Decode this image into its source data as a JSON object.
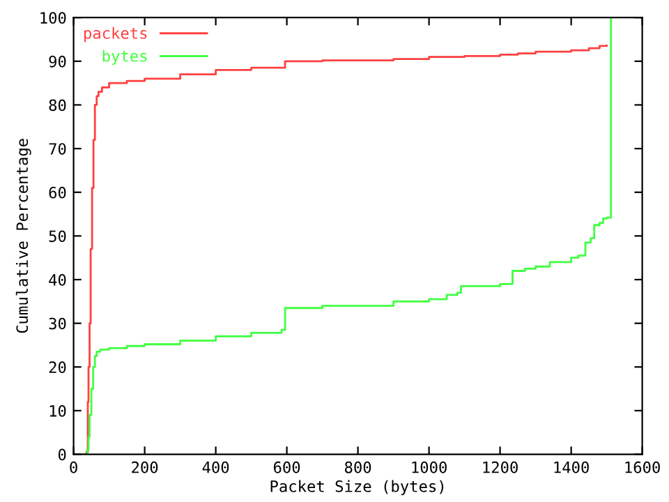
{
  "chart_data": {
    "type": "step",
    "xlabel": "Packet Size (bytes)",
    "ylabel": "Cumulative Percentage",
    "xlim": [
      0,
      1600
    ],
    "ylim": [
      0,
      100
    ],
    "xticks": [
      0,
      200,
      400,
      600,
      800,
      1000,
      1200,
      1400,
      1600
    ],
    "yticks": [
      0,
      10,
      20,
      30,
      40,
      50,
      60,
      70,
      80,
      90,
      100
    ],
    "legend": "top left",
    "grid": false,
    "series": [
      {
        "name": "packets",
        "color": "#ff4040",
        "x": [
          28,
          36,
          40,
          42,
          45,
          48,
          52,
          56,
          60,
          65,
          70,
          80,
          100,
          150,
          200,
          300,
          400,
          500,
          590,
          595,
          700,
          900,
          1000,
          1100,
          1200,
          1250,
          1300,
          1400,
          1450,
          1480,
          1500
        ],
        "values": [
          0,
          0.5,
          12,
          20,
          30,
          47,
          61,
          72,
          80,
          82,
          83,
          84,
          85,
          85.5,
          86,
          87,
          88,
          88.5,
          88.5,
          90,
          90.2,
          90.5,
          91,
          91.2,
          91.5,
          91.8,
          92.2,
          92.5,
          93,
          93.5,
          93.6
        ]
      },
      {
        "name": "bytes",
        "color": "#40ff40",
        "x": [
          28,
          38,
          42,
          45,
          50,
          55,
          60,
          65,
          75,
          100,
          150,
          200,
          300,
          400,
          500,
          585,
          595,
          700,
          900,
          1000,
          1050,
          1080,
          1090,
          1150,
          1200,
          1235,
          1270,
          1300,
          1340,
          1400,
          1420,
          1440,
          1455,
          1465,
          1480,
          1490,
          1500,
          1512
        ],
        "values": [
          0,
          1,
          4,
          9,
          15,
          20,
          22.5,
          23.5,
          24,
          24.3,
          24.8,
          25.2,
          26,
          27,
          27.8,
          28.5,
          33.5,
          34,
          35,
          35.5,
          36.5,
          37,
          38.5,
          38.5,
          39,
          42,
          42.5,
          43,
          44,
          45,
          45.5,
          48.5,
          49.5,
          52.5,
          53,
          54,
          54.2,
          100
        ]
      }
    ]
  }
}
